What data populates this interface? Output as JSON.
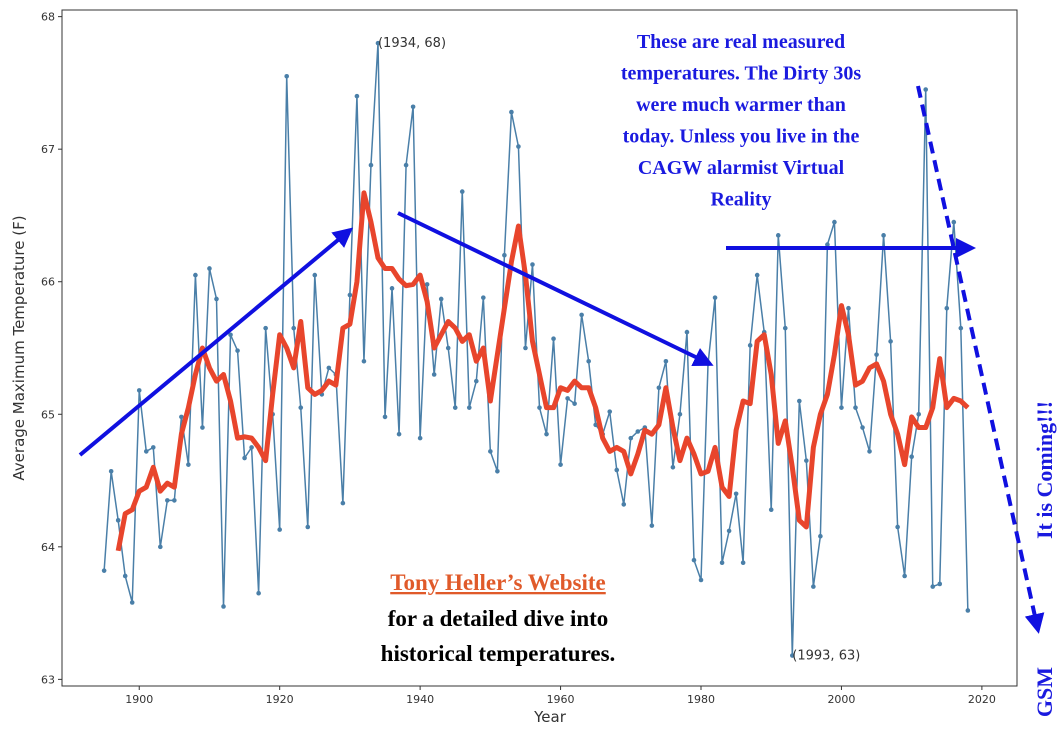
{
  "chart_data": {
    "type": "line",
    "xlabel": "Year",
    "ylabel": "Average Maximum Temperature (F)",
    "x": [
      1895,
      1896,
      1897,
      1898,
      1899,
      1900,
      1901,
      1902,
      1903,
      1904,
      1905,
      1906,
      1907,
      1908,
      1909,
      1910,
      1911,
      1912,
      1913,
      1914,
      1915,
      1916,
      1917,
      1918,
      1919,
      1920,
      1921,
      1922,
      1923,
      1924,
      1925,
      1926,
      1927,
      1928,
      1929,
      1930,
      1931,
      1932,
      1933,
      1934,
      1935,
      1936,
      1937,
      1938,
      1939,
      1940,
      1941,
      1942,
      1943,
      1944,
      1945,
      1946,
      1947,
      1948,
      1949,
      1950,
      1951,
      1952,
      1953,
      1954,
      1955,
      1956,
      1957,
      1958,
      1959,
      1960,
      1961,
      1962,
      1963,
      1964,
      1965,
      1966,
      1967,
      1968,
      1969,
      1970,
      1971,
      1972,
      1973,
      1974,
      1975,
      1976,
      1977,
      1978,
      1979,
      1980,
      1981,
      1982,
      1983,
      1984,
      1985,
      1986,
      1987,
      1988,
      1989,
      1990,
      1991,
      1992,
      1993,
      1994,
      1995,
      1996,
      1997,
      1998,
      1999,
      2000,
      2001,
      2002,
      2003,
      2004,
      2005,
      2006,
      2007,
      2008,
      2009,
      2010,
      2011,
      2012,
      2013,
      2014,
      2015,
      2016,
      2017,
      2018
    ],
    "series": [
      {
        "color": "#4a7fa8",
        "markers": true,
        "values": [
          63.82,
          64.57,
          64.2,
          63.78,
          63.58,
          65.18,
          64.72,
          64.75,
          64.0,
          64.35,
          64.35,
          64.98,
          64.62,
          66.05,
          64.9,
          66.1,
          65.87,
          63.55,
          65.6,
          65.48,
          64.67,
          64.75,
          63.65,
          65.65,
          65.0,
          64.13,
          67.55,
          65.65,
          65.05,
          64.15,
          66.05,
          65.15,
          65.35,
          65.3,
          64.33,
          65.9,
          67.4,
          65.4,
          66.88,
          67.8,
          64.98,
          65.95,
          64.85,
          66.88,
          67.32,
          64.82,
          65.98,
          65.3,
          65.87,
          65.5,
          65.05,
          66.68,
          65.05,
          65.25,
          65.88,
          64.72,
          64.57,
          66.2,
          67.28,
          67.02,
          65.5,
          66.13,
          65.05,
          64.85,
          65.57,
          64.62,
          65.12,
          65.08,
          65.75,
          65.4,
          64.92,
          64.85,
          65.02,
          64.58,
          64.32,
          64.82,
          64.87,
          64.9,
          64.16,
          65.2,
          65.4,
          64.6,
          65.0,
          65.62,
          63.9,
          63.75,
          65.38,
          65.88,
          63.88,
          64.12,
          64.4,
          63.88,
          65.52,
          66.05,
          65.62,
          64.28,
          66.35,
          65.65,
          63.18,
          65.1,
          64.65,
          63.7,
          64.08,
          66.28,
          66.45,
          65.05,
          65.8,
          65.05,
          64.9,
          64.72,
          65.45,
          66.35,
          65.55,
          64.15,
          63.78,
          64.68,
          65.0,
          67.45,
          63.7,
          63.72,
          65.8,
          66.45,
          65.65,
          63.52
        ]
      },
      {
        "color": "#e8452c",
        "markers": false,
        "values": [
          null,
          null,
          63.97,
          64.25,
          64.28,
          64.42,
          64.45,
          64.6,
          64.42,
          64.48,
          64.45,
          64.85,
          65.05,
          65.3,
          65.5,
          65.35,
          65.25,
          65.3,
          65.1,
          64.82,
          64.83,
          64.82,
          64.75,
          64.65,
          65.15,
          65.6,
          65.5,
          65.35,
          65.7,
          65.2,
          65.15,
          65.18,
          65.25,
          65.22,
          65.65,
          65.68,
          66.0,
          66.67,
          66.45,
          66.18,
          66.1,
          66.1,
          66.02,
          65.97,
          65.98,
          66.05,
          65.85,
          65.5,
          65.6,
          65.7,
          65.65,
          65.55,
          65.6,
          65.4,
          65.5,
          65.1,
          65.45,
          65.8,
          66.15,
          66.42,
          66.05,
          65.55,
          65.3,
          65.05,
          65.05,
          65.2,
          65.18,
          65.25,
          65.2,
          65.2,
          65.05,
          64.82,
          64.72,
          64.75,
          64.72,
          64.55,
          64.7,
          64.88,
          64.85,
          64.92,
          65.2,
          64.9,
          64.65,
          64.82,
          64.7,
          64.55,
          64.57,
          64.75,
          64.45,
          64.38,
          64.88,
          65.1,
          65.08,
          65.55,
          65.6,
          65.3,
          64.78,
          64.95,
          64.6,
          64.2,
          64.15,
          64.75,
          65.0,
          65.15,
          65.45,
          65.82,
          65.6,
          65.22,
          65.25,
          65.35,
          65.38,
          65.25,
          65.0,
          64.85,
          64.62,
          64.98,
          64.9,
          64.9,
          65.05,
          65.42,
          65.05,
          65.12,
          65.1,
          65.05
        ]
      }
    ],
    "xlim": [
      1889,
      2025
    ],
    "ylim": [
      62.95,
      68.05
    ],
    "xticks": [
      1900,
      1920,
      1940,
      1960,
      1980,
      2000,
      2020
    ],
    "yticks": [
      63,
      64,
      65,
      66,
      67,
      68
    ],
    "point_labels": [
      {
        "x": 1934,
        "y": 67.8,
        "text": "(1934, 68)"
      },
      {
        "x": 1993,
        "y": 63.18,
        "text": "(1993, 63)"
      }
    ],
    "note": [
      "These are real measured",
      "temperatures. The Dirty 30s",
      "were much warmer than",
      "today. Unless you live in the",
      "CAGW alarmist Virtual",
      "Reality"
    ],
    "link": "Tony Heller’s Website",
    "link_caption": [
      "for a detailed dive into",
      "historical temperatures."
    ],
    "side_text": [
      "It is Coming!!!",
      "GSM"
    ]
  }
}
